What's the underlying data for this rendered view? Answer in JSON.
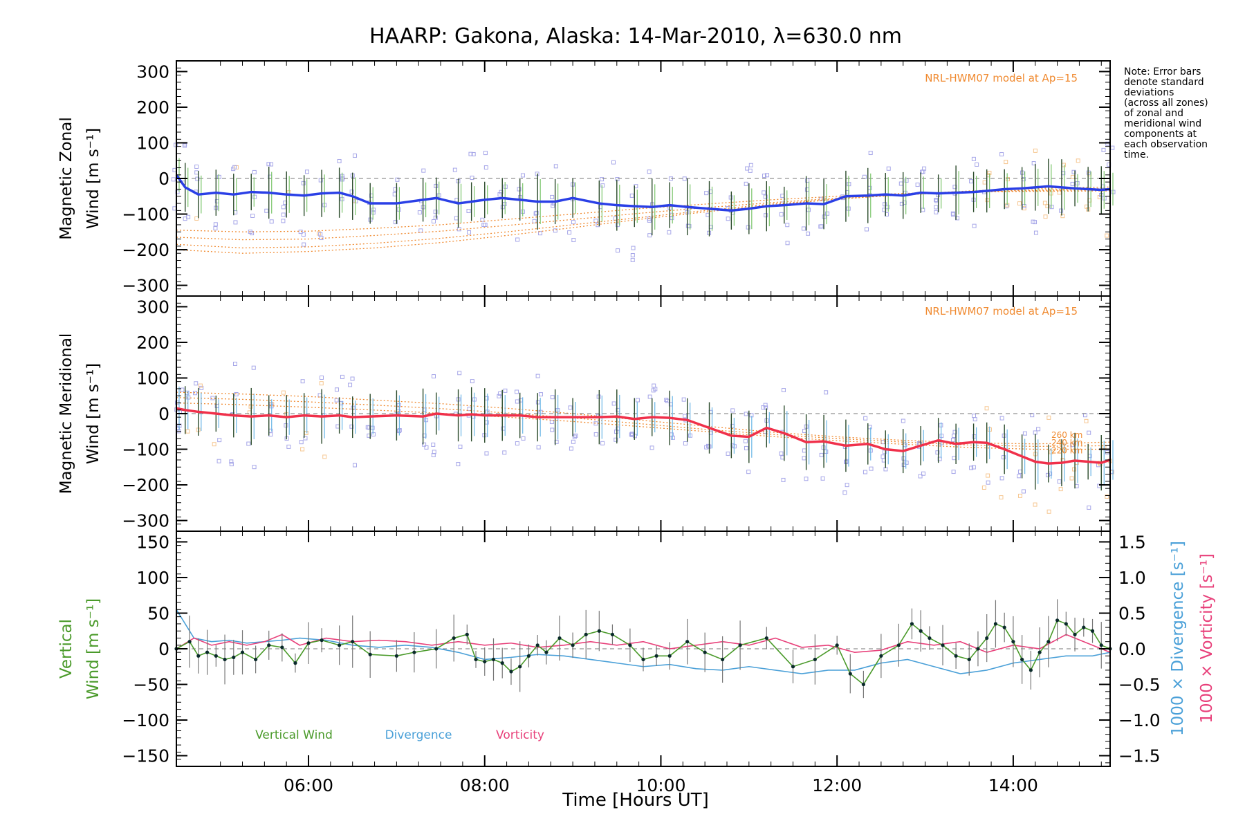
{
  "title": "HAARP: Gakona,  Alaska: 14-Mar-2010, λ=630.0 nm",
  "note": [
    "Note: Error bars",
    "denote standard",
    "deviations",
    "(across all zones)",
    "of zonal and",
    "meridional wind",
    "components at",
    "each observation",
    "time."
  ],
  "colors": {
    "zonal": "#2a3fe6",
    "meridional": "#f0304a",
    "vertical": "#4a9a2a",
    "divergence": "#4aa0d8",
    "vorticity": "#e8407a",
    "model": "#f08a30",
    "scatter": "#a6a6e8",
    "scatter_model": "#f6c690"
  },
  "chart_data": [
    {
      "type": "line",
      "ylabel": [
        "Magnetic Zonal",
        "Wind [m s⁻¹]"
      ],
      "ylim": [
        -330,
        330
      ],
      "yticks": [
        300,
        200,
        100,
        0,
        -100,
        -200,
        -300
      ],
      "xlim": [
        4.5,
        15.1
      ],
      "model_label": "NRL-HWM07 model at Ap=15",
      "x": [
        4.5,
        4.6,
        4.75,
        4.95,
        5.15,
        5.35,
        5.55,
        5.75,
        5.95,
        6.15,
        6.35,
        6.5,
        6.7,
        7.0,
        7.3,
        7.45,
        7.7,
        7.85,
        8.0,
        8.2,
        8.4,
        8.6,
        8.8,
        9.0,
        9.3,
        9.5,
        9.7,
        9.9,
        10.1,
        10.3,
        10.55,
        10.8,
        11.0,
        11.2,
        11.4,
        11.65,
        11.85,
        12.1,
        12.35,
        12.55,
        12.75,
        12.95,
        13.15,
        13.35,
        13.55,
        13.7,
        13.9,
        14.1,
        14.25,
        14.4,
        14.55,
        14.7,
        14.85,
        15.0,
        15.1
      ],
      "series": [
        {
          "values": [
            10,
            -25,
            -45,
            -40,
            -45,
            -38,
            -40,
            -45,
            -48,
            -42,
            -40,
            -50,
            -70,
            -70,
            -60,
            -55,
            -70,
            -65,
            -60,
            -55,
            -60,
            -65,
            -65,
            -55,
            -70,
            -75,
            -78,
            -80,
            -75,
            -80,
            -85,
            -90,
            -85,
            -78,
            -75,
            -70,
            -72,
            -50,
            -48,
            -45,
            -48,
            -40,
            -42,
            -40,
            -38,
            -35,
            -30,
            -28,
            -25,
            -22,
            -25,
            -28,
            -30,
            -32,
            -30
          ]
        }
      ],
      "model_curves": [
        [
          -145,
          -150,
          -148,
          -140,
          -130,
          -115,
          -100,
          -85,
          -72,
          -60,
          -50,
          -42,
          -38,
          -36,
          -35
        ],
        [
          -165,
          -172,
          -170,
          -160,
          -148,
          -132,
          -115,
          -98,
          -82,
          -68,
          -55,
          -45,
          -38,
          -34,
          -32
        ],
        [
          -185,
          -195,
          -192,
          -182,
          -168,
          -150,
          -130,
          -110,
          -90,
          -72,
          -58,
          -46,
          -38,
          -32,
          -28
        ],
        [
          -200,
          -210,
          -205,
          -195,
          -180,
          -160,
          -138,
          -115,
          -94,
          -75,
          -58,
          -45,
          -35,
          -28,
          -24
        ]
      ],
      "model_x": [
        4.5,
        5.25,
        6.0,
        6.75,
        7.5,
        8.25,
        9.0,
        9.75,
        10.5,
        11.25,
        12.0,
        12.75,
        13.5,
        14.25,
        15.1
      ]
    },
    {
      "type": "line",
      "ylabel": [
        "Magnetic Meridional",
        "Wind [m s⁻¹]"
      ],
      "ylim": [
        -330,
        330
      ],
      "yticks": [
        300,
        200,
        100,
        0,
        -100,
        -200,
        -300
      ],
      "xlim": [
        4.5,
        15.1
      ],
      "model_label": "NRL-HWM07 model at Ap=15",
      "model_alt_labels": [
        "260 km",
        "240 km",
        "220 km"
      ],
      "x": [
        4.5,
        4.6,
        4.75,
        4.95,
        5.15,
        5.35,
        5.55,
        5.75,
        5.95,
        6.15,
        6.35,
        6.5,
        6.7,
        7.0,
        7.3,
        7.45,
        7.7,
        7.85,
        8.0,
        8.2,
        8.4,
        8.6,
        8.8,
        9.0,
        9.3,
        9.5,
        9.7,
        9.9,
        10.1,
        10.3,
        10.55,
        10.8,
        11.0,
        11.2,
        11.4,
        11.65,
        11.85,
        12.1,
        12.35,
        12.55,
        12.75,
        12.95,
        13.15,
        13.35,
        13.55,
        13.7,
        13.9,
        14.1,
        14.25,
        14.4,
        14.55,
        14.7,
        14.85,
        15.0,
        15.1
      ],
      "series": [
        {
          "values": [
            15,
            10,
            5,
            0,
            -5,
            -8,
            -5,
            -10,
            -5,
            -8,
            -5,
            -10,
            -8,
            -5,
            -8,
            0,
            -5,
            -2,
            -5,
            -5,
            -5,
            -10,
            -10,
            -10,
            -10,
            -8,
            -15,
            -10,
            -12,
            -18,
            -40,
            -62,
            -65,
            -40,
            -55,
            -80,
            -78,
            -90,
            -85,
            -100,
            -105,
            -90,
            -75,
            -85,
            -80,
            -82,
            -100,
            -120,
            -135,
            -140,
            -138,
            -132,
            -135,
            -138,
            -130
          ]
        }
      ],
      "model_curves": [
        [
          60,
          55,
          48,
          38,
          28,
          15,
          0,
          -18,
          -35,
          -52,
          -65,
          -75,
          -82,
          -85,
          -80
        ],
        [
          45,
          40,
          33,
          24,
          14,
          2,
          -12,
          -28,
          -44,
          -58,
          -70,
          -80,
          -88,
          -92,
          -90
        ],
        [
          30,
          25,
          18,
          10,
          1,
          -10,
          -22,
          -36,
          -50,
          -64,
          -76,
          -86,
          -95,
          -100,
          -100
        ]
      ],
      "model_x": [
        4.5,
        5.25,
        6.0,
        6.75,
        7.5,
        8.25,
        9.0,
        9.75,
        10.5,
        11.25,
        12.0,
        12.75,
        13.5,
        14.25,
        15.1
      ]
    },
    {
      "type": "line",
      "ylabel": [
        "Vertical",
        "Wind [m s⁻¹]"
      ],
      "y2label": [
        "1000 × Divergence [s⁻¹]",
        "1000 × Vorticity [s⁻¹]"
      ],
      "ylim": [
        -165,
        165
      ],
      "yticks": [
        150,
        100,
        50,
        0,
        -50,
        -100,
        -150
      ],
      "y2lim": [
        -1.65,
        1.65
      ],
      "y2ticks": [
        1.5,
        1.0,
        0.5,
        0.0,
        -0.5,
        -1.0,
        -1.5
      ],
      "y2ticklabels": [
        "1.5",
        "1.0",
        "0.5",
        "0.0",
        "−0.5",
        "−1.0",
        "−1.5"
      ],
      "xlim": [
        4.5,
        15.1
      ],
      "xticks": [
        6,
        8,
        10,
        12,
        14
      ],
      "xticklabels": [
        "06:00",
        "08:00",
        "10:00",
        "12:00",
        "14:00"
      ],
      "xlabel": "Time [Hours UT]",
      "legend": [
        "Vertical Wind",
        "Divergence",
        "Vorticity"
      ],
      "vertical": {
        "x": [
          4.5,
          4.65,
          4.75,
          4.85,
          4.95,
          5.05,
          5.15,
          5.25,
          5.4,
          5.55,
          5.7,
          5.85,
          6.0,
          6.15,
          6.35,
          6.5,
          6.7,
          7.0,
          7.2,
          7.45,
          7.65,
          7.8,
          7.9,
          8.0,
          8.1,
          8.2,
          8.3,
          8.4,
          8.5,
          8.6,
          8.7,
          8.85,
          9.0,
          9.15,
          9.3,
          9.45,
          9.65,
          9.8,
          9.95,
          10.1,
          10.3,
          10.5,
          10.7,
          10.9,
          11.2,
          11.5,
          11.75,
          12.0,
          12.15,
          12.3,
          12.5,
          12.7,
          12.85,
          12.95,
          13.05,
          13.2,
          13.35,
          13.5,
          13.6,
          13.7,
          13.8,
          13.9,
          14.0,
          14.1,
          14.2,
          14.3,
          14.4,
          14.5,
          14.6,
          14.7,
          14.8,
          14.9,
          15.0,
          15.1
        ],
        "values": [
          0,
          10,
          -10,
          -5,
          -10,
          -15,
          -12,
          -5,
          -15,
          5,
          2,
          -20,
          8,
          12,
          5,
          10,
          -8,
          -10,
          -5,
          0,
          15,
          20,
          -15,
          -18,
          -15,
          -20,
          -32,
          -25,
          -10,
          5,
          -5,
          15,
          5,
          20,
          25,
          20,
          5,
          -15,
          -10,
          -10,
          10,
          -5,
          -15,
          5,
          15,
          -25,
          -15,
          5,
          -35,
          -50,
          -10,
          5,
          35,
          25,
          15,
          5,
          -10,
          -15,
          0,
          15,
          35,
          30,
          10,
          -15,
          -30,
          -5,
          10,
          40,
          35,
          20,
          30,
          25,
          5,
          0
        ]
      },
      "divergence": {
        "x": [
          4.5,
          4.7,
          4.9,
          5.1,
          5.3,
          5.5,
          5.7,
          5.9,
          6.2,
          6.5,
          6.8,
          7.1,
          7.4,
          7.7,
          8.0,
          8.3,
          8.6,
          8.9,
          9.2,
          9.5,
          9.8,
          10.1,
          10.4,
          10.7,
          11.0,
          11.3,
          11.6,
          11.9,
          12.2,
          12.5,
          12.8,
          13.1,
          13.4,
          13.7,
          14.0,
          14.3,
          14.6,
          14.9,
          15.1
        ],
        "values": [
          0.55,
          0.15,
          0.1,
          0.12,
          0.08,
          0.1,
          0.12,
          0.15,
          0.12,
          0.05,
          0.02,
          0.05,
          0.02,
          -0.05,
          -0.15,
          -0.12,
          -0.08,
          -0.1,
          -0.15,
          -0.2,
          -0.25,
          -0.22,
          -0.28,
          -0.3,
          -0.25,
          -0.3,
          -0.35,
          -0.3,
          -0.3,
          -0.2,
          -0.15,
          -0.25,
          -0.35,
          -0.3,
          -0.2,
          -0.15,
          -0.1,
          -0.1,
          -0.05
        ]
      },
      "vorticity": {
        "x": [
          4.5,
          4.7,
          4.9,
          5.1,
          5.3,
          5.5,
          5.7,
          5.9,
          6.2,
          6.5,
          6.8,
          7.1,
          7.4,
          7.7,
          8.0,
          8.3,
          8.6,
          8.9,
          9.2,
          9.5,
          9.8,
          10.1,
          10.4,
          10.7,
          11.0,
          11.3,
          11.6,
          11.9,
          12.2,
          12.5,
          12.8,
          13.1,
          13.4,
          13.7,
          14.0,
          14.3,
          14.6,
          14.9,
          15.1
        ],
        "values": [
          0.0,
          0.15,
          0.05,
          0.1,
          0.05,
          0.1,
          0.2,
          0.05,
          0.15,
          0.1,
          0.12,
          0.1,
          0.05,
          0.1,
          0.05,
          0.08,
          0.02,
          0.05,
          0.1,
          0.05,
          0.1,
          0.0,
          0.05,
          0.1,
          0.05,
          0.15,
          0.02,
          0.05,
          -0.05,
          -0.02,
          0.1,
          0.05,
          0.1,
          -0.05,
          0.05,
          0.0,
          0.2,
          0.05,
          -0.05
        ]
      }
    }
  ]
}
